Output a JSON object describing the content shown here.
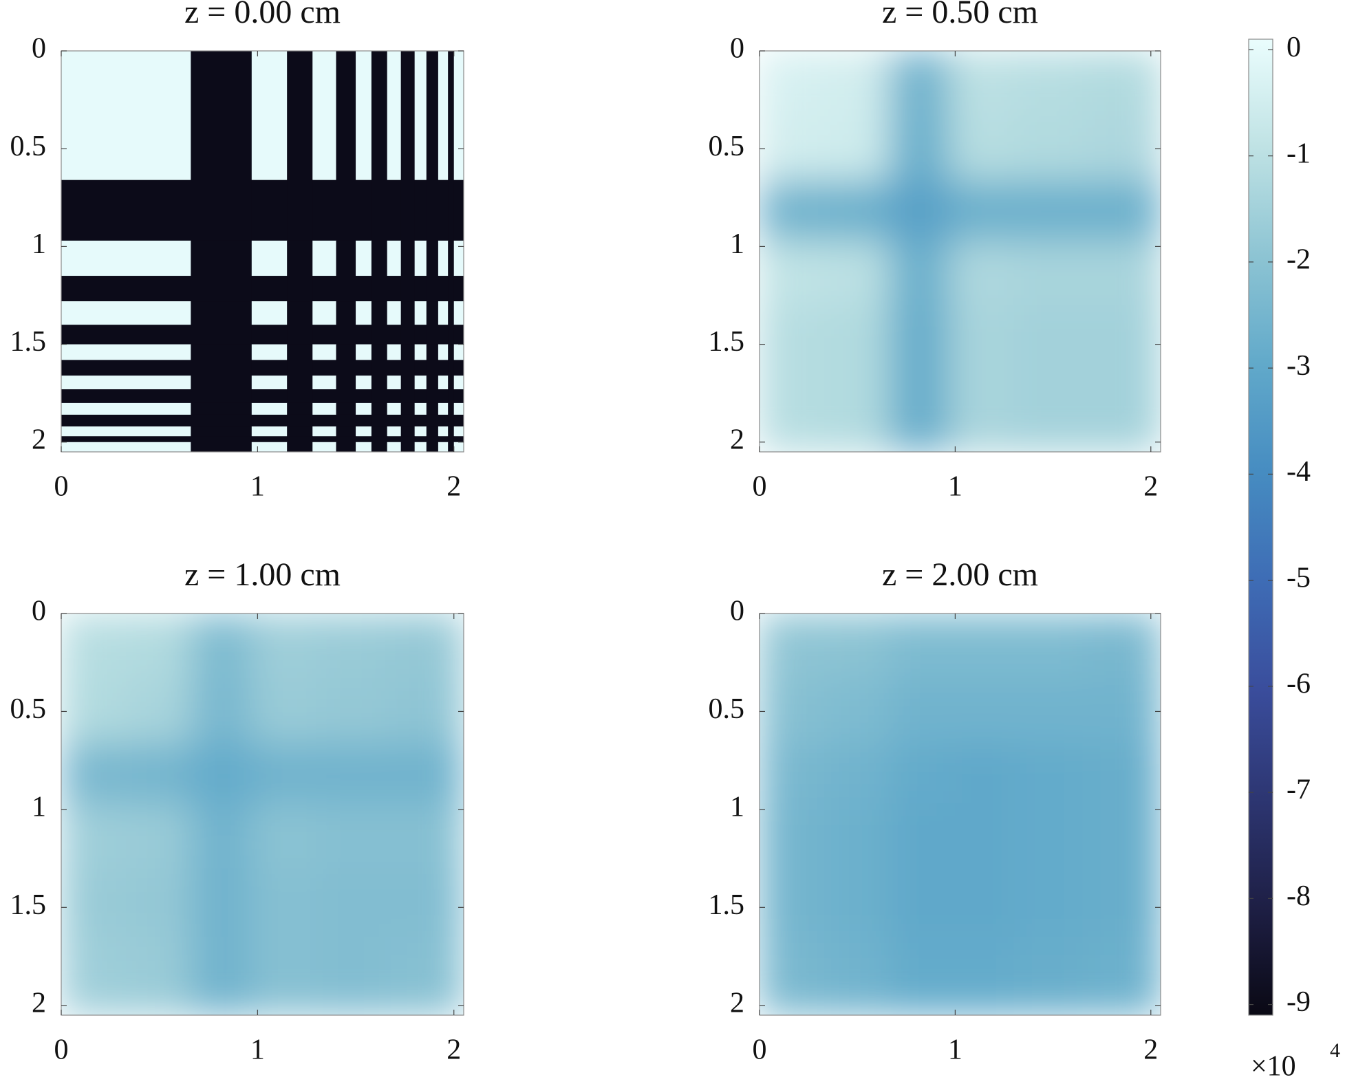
{
  "chart_data": [
    {
      "type": "heatmap",
      "title": "z = 0.00 cm",
      "x_edges": [
        0,
        0.66,
        0.97,
        1.15,
        1.28,
        1.4,
        1.5,
        1.58,
        1.66,
        1.73,
        1.8,
        1.86,
        1.92,
        1.97,
        2.0,
        2.05
      ],
      "y_edges": [
        0,
        0.66,
        0.97,
        1.15,
        1.28,
        1.4,
        1.5,
        1.58,
        1.66,
        1.73,
        1.8,
        1.86,
        1.92,
        1.97,
        2.0,
        2.05
      ],
      "values": [
        [
          0,
          -9,
          0,
          -9,
          0,
          -9,
          0,
          -9,
          0,
          -9,
          0,
          -9,
          0,
          -9,
          0
        ],
        [
          -9,
          -9,
          -9,
          -9,
          -9,
          -9,
          -9,
          -9,
          -9,
          -9,
          -9,
          -9,
          -9,
          -9,
          -9
        ],
        [
          0,
          -9,
          0,
          -9,
          0,
          -9,
          0,
          -9,
          0,
          -9,
          0,
          -9,
          0,
          -9,
          0
        ],
        [
          -9,
          -9,
          -9,
          -9,
          -9,
          -9,
          -9,
          -9,
          -9,
          -9,
          -9,
          -9,
          -9,
          -9,
          -9
        ],
        [
          0,
          -9,
          0,
          -9,
          0,
          -9,
          0,
          -9,
          0,
          -9,
          0,
          -9,
          0,
          -9,
          0
        ],
        [
          -9,
          -9,
          -9,
          -9,
          -9,
          -9,
          -9,
          -9,
          -9,
          -9,
          -9,
          -9,
          -9,
          -9,
          -9
        ],
        [
          0,
          -9,
          0,
          -9,
          0,
          -9,
          0,
          -9,
          0,
          -9,
          0,
          -9,
          0,
          -9,
          0
        ],
        [
          -9,
          -9,
          -9,
          -9,
          -9,
          -9,
          -9,
          -9,
          -9,
          -9,
          -9,
          -9,
          -9,
          -9,
          -9
        ],
        [
          0,
          -9,
          0,
          -9,
          0,
          -9,
          0,
          -9,
          0,
          -9,
          0,
          -9,
          0,
          -9,
          0
        ],
        [
          -9,
          -9,
          -9,
          -9,
          -9,
          -9,
          -9,
          -9,
          -9,
          -9,
          -9,
          -9,
          -9,
          -9,
          -9
        ],
        [
          0,
          -9,
          0,
          -9,
          0,
          -9,
          0,
          -9,
          0,
          -9,
          0,
          -9,
          0,
          -9,
          0
        ],
        [
          -9,
          -9,
          -9,
          -9,
          -9,
          -9,
          -9,
          -9,
          -9,
          -9,
          -9,
          -9,
          -9,
          -9,
          -9
        ],
        [
          0,
          -9,
          0,
          -9,
          0,
          -9,
          0,
          -9,
          0,
          -9,
          0,
          -9,
          0,
          -9,
          0
        ],
        [
          -9,
          -9,
          -9,
          -9,
          -9,
          -9,
          -9,
          -9,
          -9,
          -9,
          -9,
          -9,
          -9,
          -9,
          -9
        ],
        [
          0,
          -9,
          0,
          -9,
          0,
          -9,
          0,
          -9,
          0,
          -9,
          0,
          -9,
          0,
          -9,
          0
        ]
      ],
      "smooth": false,
      "xlim": [
        0,
        2.05
      ],
      "ylim": [
        0,
        2.05
      ],
      "xticks": [
        0,
        1,
        2
      ],
      "yticks": [
        0,
        0.5,
        1,
        1.5,
        2
      ]
    },
    {
      "type": "heatmap",
      "title": "z = 0.50 cm",
      "x_edges": [
        0,
        0.33,
        0.66,
        0.97,
        1.3,
        1.65,
        2.05
      ],
      "y_edges": [
        0,
        0.33,
        0.66,
        0.97,
        1.3,
        1.65,
        2.05
      ],
      "values": [
        [
          -0.4,
          -0.5,
          -2.6,
          -1.0,
          -1.1,
          -1.2
        ],
        [
          -0.5,
          -0.6,
          -2.7,
          -1.1,
          -1.2,
          -1.3
        ],
        [
          -2.6,
          -2.7,
          -3.3,
          -2.7,
          -2.7,
          -2.7
        ],
        [
          -0.9,
          -1.0,
          -2.7,
          -1.3,
          -1.4,
          -1.4
        ],
        [
          -1.1,
          -1.2,
          -2.8,
          -1.4,
          -1.5,
          -1.5
        ],
        [
          -1.1,
          -1.2,
          -2.8,
          -1.4,
          -1.5,
          -1.5
        ]
      ],
      "smooth": true,
      "xlim": [
        0,
        2.05
      ],
      "ylim": [
        0,
        2.05
      ],
      "xticks": [
        0,
        1,
        2
      ],
      "yticks": [
        0,
        0.5,
        1,
        1.5,
        2
      ]
    },
    {
      "type": "heatmap",
      "title": "z = 1.00 cm",
      "x_edges": [
        0,
        0.33,
        0.66,
        0.97,
        1.3,
        1.65,
        2.05
      ],
      "y_edges": [
        0,
        0.33,
        0.66,
        0.97,
        1.3,
        1.65,
        2.05
      ],
      "values": [
        [
          -1.1,
          -1.2,
          -2.3,
          -1.6,
          -1.7,
          -1.8
        ],
        [
          -1.2,
          -1.4,
          -2.4,
          -1.7,
          -1.8,
          -1.9
        ],
        [
          -2.4,
          -2.5,
          -2.9,
          -2.6,
          -2.6,
          -2.6
        ],
        [
          -1.6,
          -1.7,
          -2.6,
          -2.0,
          -2.1,
          -2.1
        ],
        [
          -1.7,
          -1.8,
          -2.6,
          -2.1,
          -2.2,
          -2.2
        ],
        [
          -1.6,
          -1.7,
          -2.6,
          -2.1,
          -2.2,
          -2.1
        ]
      ],
      "smooth": true,
      "xlim": [
        0,
        2.05
      ],
      "ylim": [
        0,
        2.05
      ],
      "xticks": [
        0,
        1,
        2
      ],
      "yticks": [
        0,
        0.5,
        1,
        1.5,
        2
      ]
    },
    {
      "type": "heatmap",
      "title": "z = 2.00 cm",
      "x_edges": [
        0,
        0.33,
        0.66,
        0.97,
        1.3,
        1.65,
        2.05
      ],
      "y_edges": [
        0,
        0.33,
        0.66,
        0.97,
        1.3,
        1.65,
        2.05
      ],
      "values": [
        [
          -1.9,
          -2.0,
          -2.3,
          -2.3,
          -2.3,
          -2.4
        ],
        [
          -2.1,
          -2.3,
          -2.6,
          -2.6,
          -2.6,
          -2.6
        ],
        [
          -2.4,
          -2.6,
          -2.9,
          -3.0,
          -2.9,
          -2.8
        ],
        [
          -2.5,
          -2.7,
          -3.0,
          -3.0,
          -2.9,
          -2.8
        ],
        [
          -2.5,
          -2.7,
          -3.0,
          -3.0,
          -2.9,
          -2.8
        ],
        [
          -2.4,
          -2.6,
          -2.9,
          -2.9,
          -2.8,
          -2.7
        ]
      ],
      "smooth": true,
      "xlim": [
        0,
        2.05
      ],
      "ylim": [
        0,
        2.05
      ],
      "xticks": [
        0,
        1,
        2
      ],
      "yticks": [
        0,
        0.5,
        1,
        1.5,
        2
      ]
    },
    {
      "type": "colorbar",
      "clim": [
        -9.1,
        0.1
      ],
      "ticks": [
        0,
        -1,
        -2,
        -3,
        -4,
        -5,
        -6,
        -7,
        -8,
        -9
      ],
      "multiplier": "×10",
      "exponent": "4",
      "colormap": [
        "#0a0914",
        "#1e1f45",
        "#2d3672",
        "#3a4d9c",
        "#3e6cb5",
        "#468cc1",
        "#61a9ca",
        "#8dc4d3",
        "#bfe2e4",
        "#eafdfd"
      ]
    }
  ]
}
